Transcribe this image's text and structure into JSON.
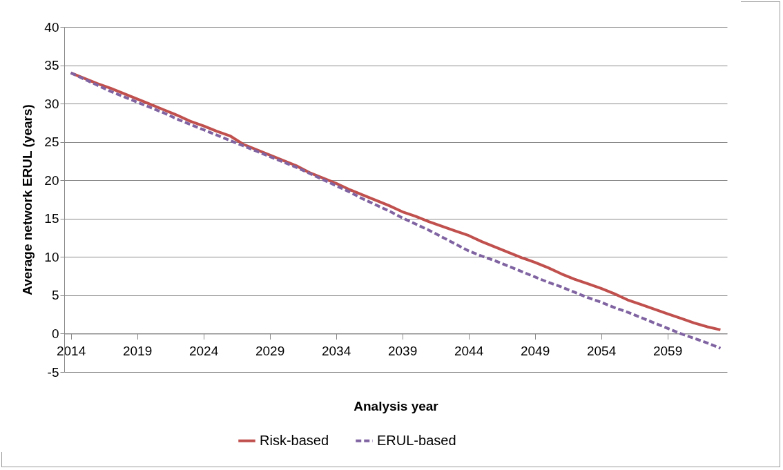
{
  "chart_data": {
    "type": "line",
    "xlabel": "Analysis year",
    "ylabel": "Average network ERUL (years)",
    "x": [
      2014,
      2015,
      2016,
      2017,
      2018,
      2019,
      2020,
      2021,
      2022,
      2023,
      2024,
      2025,
      2026,
      2027,
      2028,
      2029,
      2030,
      2031,
      2032,
      2033,
      2034,
      2035,
      2036,
      2037,
      2038,
      2039,
      2040,
      2041,
      2042,
      2043,
      2044,
      2045,
      2046,
      2047,
      2048,
      2049,
      2050,
      2051,
      2052,
      2053,
      2054,
      2055,
      2056,
      2057,
      2058,
      2059,
      2060,
      2061,
      2062,
      2063
    ],
    "series": [
      {
        "name": "Risk-based",
        "color": "#c0504d",
        "line_style": "solid",
        "values": [
          34.0,
          33.3,
          32.6,
          32.0,
          31.3,
          30.6,
          29.9,
          29.2,
          28.5,
          27.7,
          27.1,
          26.4,
          25.8,
          24.7,
          24.0,
          23.3,
          22.6,
          21.9,
          21.0,
          20.3,
          19.6,
          18.8,
          18.1,
          17.4,
          16.7,
          15.9,
          15.3,
          14.6,
          14.0,
          13.4,
          12.8,
          12.0,
          11.3,
          10.6,
          9.9,
          9.3,
          8.6,
          7.8,
          7.1,
          6.5,
          5.9,
          5.2,
          4.4,
          3.8,
          3.2,
          2.6,
          2.0,
          1.4,
          0.9,
          0.5
        ]
      },
      {
        "name": "ERUL-based",
        "color": "#8064a2",
        "line_style": "dashed",
        "values": [
          34.0,
          33.2,
          32.4,
          31.6,
          30.9,
          30.2,
          29.5,
          28.8,
          28.0,
          27.3,
          26.6,
          25.9,
          25.2,
          24.5,
          23.8,
          23.1,
          22.4,
          21.7,
          20.9,
          20.1,
          19.3,
          18.5,
          17.6,
          16.8,
          16.0,
          15.1,
          14.3,
          13.5,
          12.6,
          11.7,
          10.8,
          10.1,
          9.5,
          8.8,
          8.1,
          7.4,
          6.7,
          6.1,
          5.4,
          4.7,
          4.1,
          3.4,
          2.8,
          2.1,
          1.4,
          0.7,
          0.0,
          -0.6,
          -1.2,
          -1.9
        ]
      }
    ],
    "xlim": [
      2013.5,
      2063.5
    ],
    "xticks": [
      2014,
      2019,
      2024,
      2029,
      2034,
      2039,
      2044,
      2049,
      2054,
      2059
    ],
    "ylim": [
      -5,
      40
    ],
    "yticks": [
      -5,
      0,
      5,
      10,
      15,
      20,
      25,
      30,
      35,
      40
    ],
    "grid": "y",
    "legend": "bottom",
    "marker": "none"
  }
}
